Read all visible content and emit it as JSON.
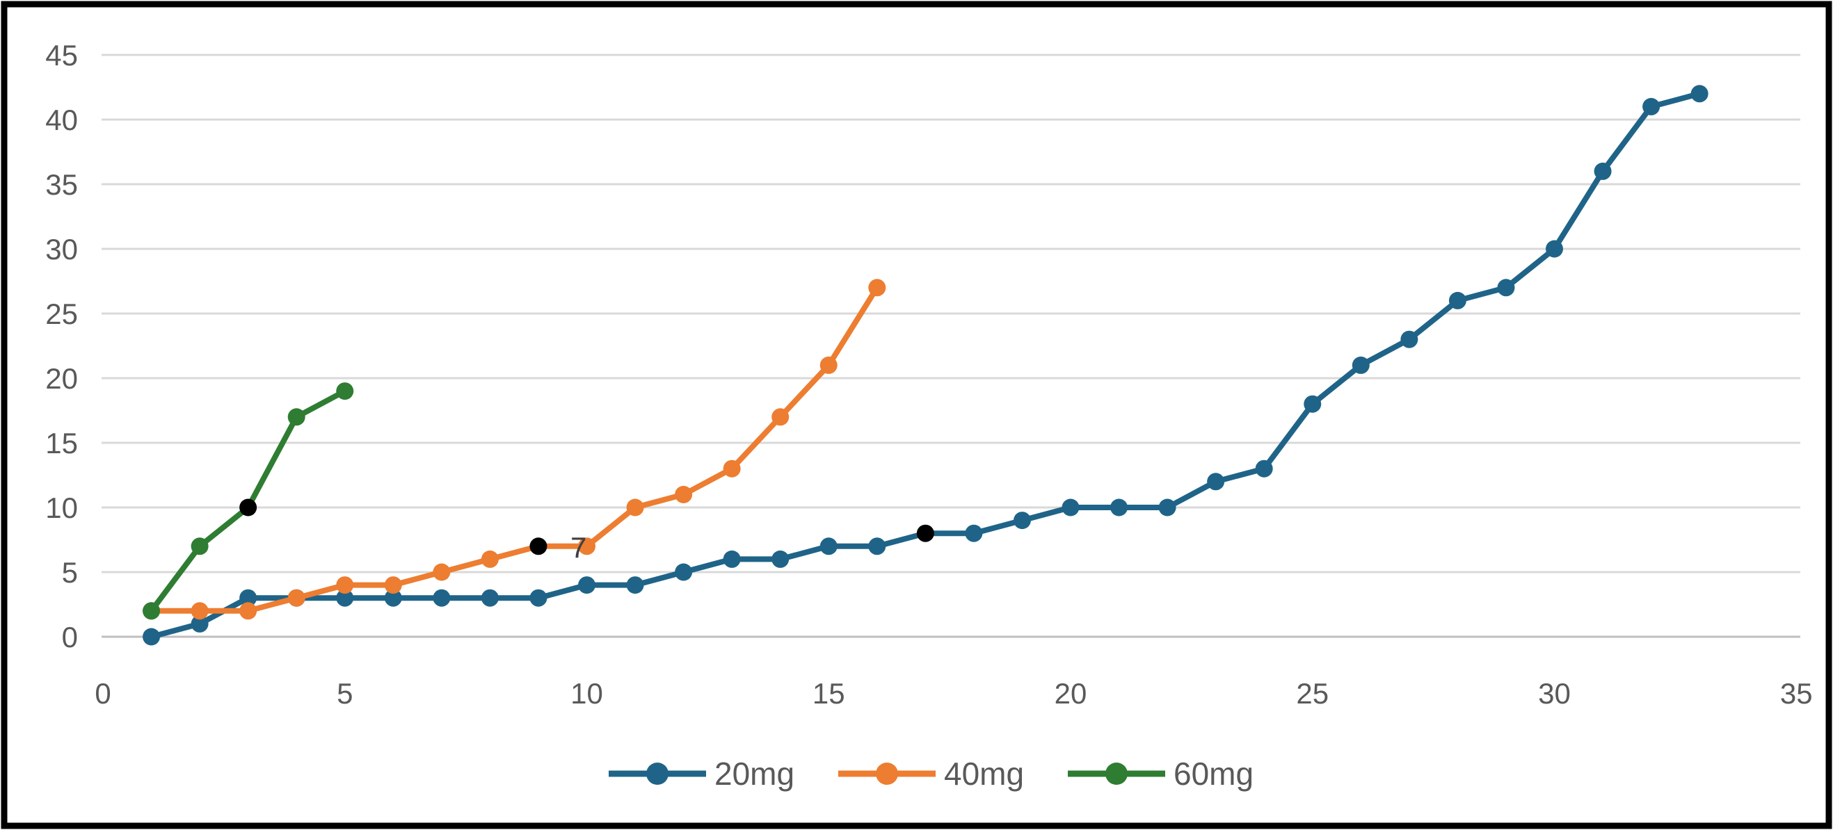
{
  "chart_data": {
    "type": "line",
    "title": "",
    "xlabel": "",
    "ylabel": "",
    "xlim": [
      0,
      35
    ],
    "ylim": [
      0,
      45
    ],
    "x_ticks": [
      0,
      5,
      10,
      15,
      20,
      25,
      30,
      35
    ],
    "y_ticks": [
      0,
      5,
      10,
      15,
      20,
      25,
      30,
      35,
      40,
      45
    ],
    "grid": "horizontal",
    "legend_position": "bottom-center",
    "series": [
      {
        "name": "20mg",
        "color": "#1F6488",
        "x": [
          1,
          2,
          3,
          4,
          5,
          6,
          7,
          8,
          9,
          10,
          11,
          12,
          13,
          14,
          15,
          16,
          17,
          18,
          19,
          20,
          21,
          22,
          23,
          24,
          25,
          26,
          27,
          28,
          29,
          30,
          31,
          32,
          33
        ],
        "values": [
          0,
          1,
          3,
          3,
          3,
          3,
          3,
          3,
          3,
          4,
          4,
          5,
          6,
          6,
          7,
          7,
          8,
          8,
          9,
          10,
          10,
          10,
          12,
          13,
          18,
          21,
          23,
          26,
          27,
          30,
          36,
          41,
          42
        ],
        "black_points": [
          17
        ]
      },
      {
        "name": "40mg",
        "color": "#ED7D31",
        "x": [
          1,
          2,
          3,
          4,
          5,
          6,
          7,
          8,
          9,
          10,
          11,
          12,
          13,
          14,
          15,
          16
        ],
        "values": [
          2,
          2,
          2,
          3,
          4,
          4,
          5,
          6,
          7,
          7,
          10,
          11,
          13,
          17,
          21,
          27
        ],
        "black_points": [
          9
        ],
        "point_labels": [
          {
            "x": 9,
            "text": "7"
          }
        ]
      },
      {
        "name": "60mg",
        "color": "#2E7D32",
        "x": [
          1,
          2,
          3,
          4,
          5
        ],
        "values": [
          2,
          7,
          10,
          17,
          19
        ],
        "black_points": [
          3
        ]
      }
    ],
    "annotations": [
      {
        "text": "7",
        "series": "40mg",
        "at_x": 9
      }
    ]
  },
  "legend": {
    "items": [
      {
        "label": "20mg",
        "color": "#1F6488"
      },
      {
        "label": "40mg",
        "color": "#ED7D31"
      },
      {
        "label": "60mg",
        "color": "#2E7D32"
      }
    ]
  },
  "colors": {
    "gridline": "#D9D9D9",
    "axis_line": "#BFBFBF",
    "tick_label": "#595959",
    "legend_label": "#595959",
    "annotation": "#3F3F3F",
    "black_marker": "#000000",
    "frame": "#000000",
    "background": "#FFFFFF"
  }
}
